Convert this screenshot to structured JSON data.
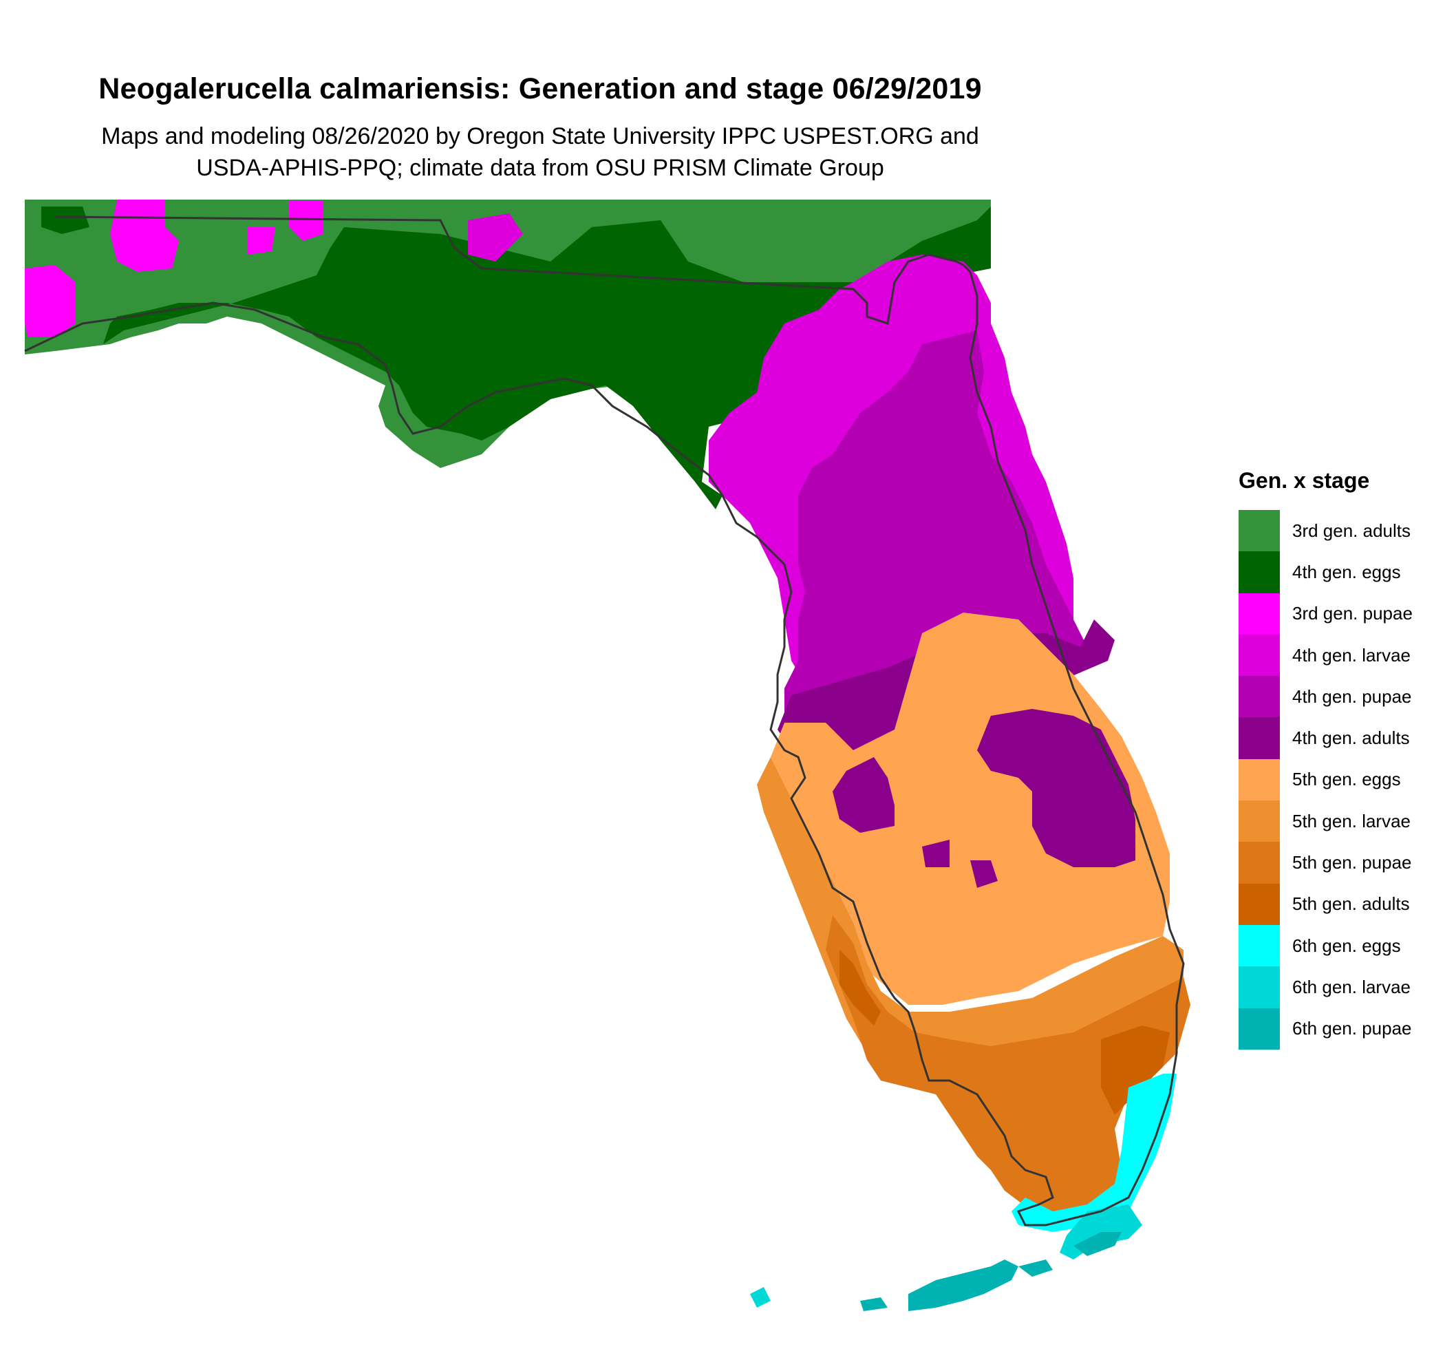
{
  "title": "Neogalerucella calmariensis: Generation and stage 06/29/2019",
  "subtitle_line1": "Maps and modeling 08/26/2020 by Oregon State University IPPC USPEST.ORG and",
  "subtitle_line2": "USDA-APHIS-PPQ; climate data from OSU PRISM Climate Group",
  "legend": {
    "title": "Gen. x stage",
    "items": [
      {
        "label": "3rd gen. adults",
        "color": "#33923A"
      },
      {
        "label": "4th gen. eggs",
        "color": "#006400"
      },
      {
        "label": "3rd gen. pupae",
        "color": "#FF00FF"
      },
      {
        "label": "4th gen. larvae",
        "color": "#DD00DD"
      },
      {
        "label": "4th gen. pupae",
        "color": "#B300B3"
      },
      {
        "label": "4th gen. adults",
        "color": "#8B008B"
      },
      {
        "label": "5th gen. eggs",
        "color": "#FFA552"
      },
      {
        "label": "5th gen. larvae",
        "color": "#EE8F30"
      },
      {
        "label": "5th gen. pupae",
        "color": "#DD7718"
      },
      {
        "label": "5th gen. adults",
        "color": "#CC6100"
      },
      {
        "label": "6th gen. eggs",
        "color": "#00FFFF"
      },
      {
        "label": "6th gen. larvae",
        "color": "#00D8D8"
      },
      {
        "label": "6th gen. pupae",
        "color": "#00B2B2"
      }
    ]
  }
}
